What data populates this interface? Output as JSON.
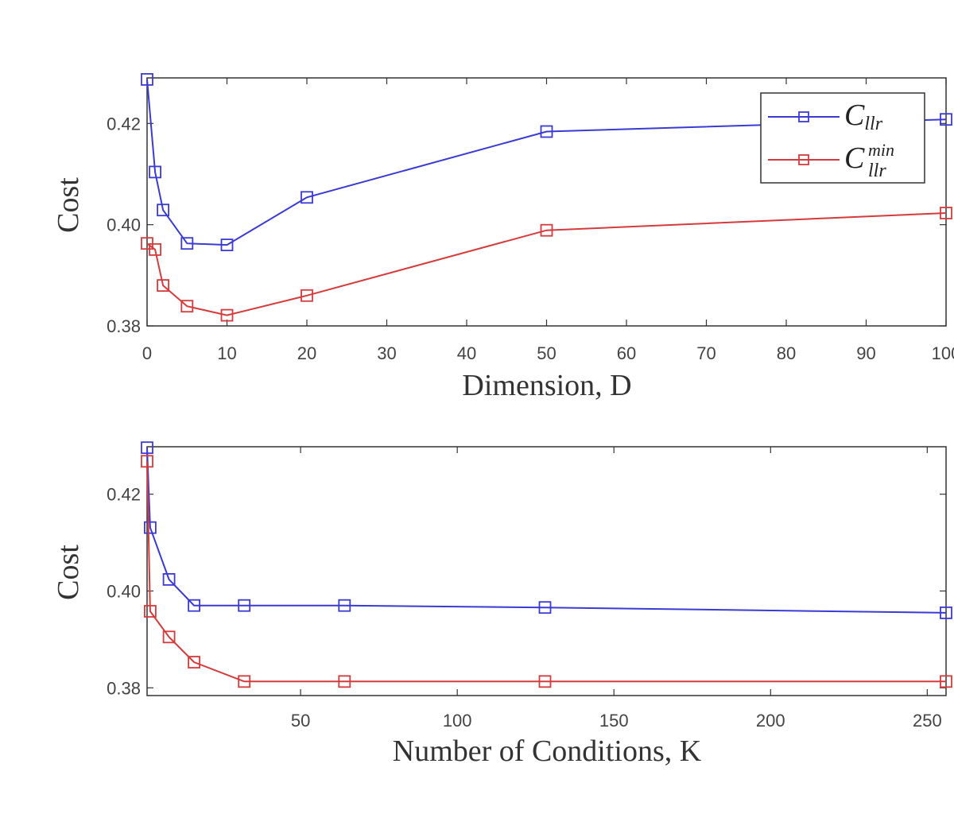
{
  "chart_data": [
    {
      "type": "line",
      "title": "",
      "xlabel": "Dimension, D",
      "ylabel": "Cost",
      "xlim": [
        0,
        100
      ],
      "ylim": [
        0.38,
        0.429
      ],
      "xticks": [
        "0",
        "10",
        "20",
        "30",
        "40",
        "50",
        "60",
        "70",
        "80",
        "90",
        "100"
      ],
      "yticks": [
        "0.38",
        "0.40",
        "0.42"
      ],
      "x": [
        0,
        1,
        2,
        5,
        10,
        20,
        50,
        100
      ],
      "series": [
        {
          "name": "C_llr",
          "color": "#3a3ad6",
          "values": [
            0.4287,
            0.4104,
            0.4029,
            0.3963,
            0.396,
            0.4054,
            0.4184,
            0.4208
          ]
        },
        {
          "name": "C_llr^min",
          "color": "#d63a3a",
          "values": [
            0.3963,
            0.3951,
            0.388,
            0.3839,
            0.3821,
            0.386,
            0.3989,
            0.4023
          ]
        }
      ],
      "legend": {
        "position": "top-right",
        "entries": [
          {
            "main": "C",
            "sub": "llr",
            "sup": ""
          },
          {
            "main": "C",
            "sub": "llr",
            "sup": "min"
          }
        ]
      },
      "grid": false
    },
    {
      "type": "line",
      "title": "",
      "xlabel": "Number of Conditions, K",
      "ylabel": "Cost",
      "xlim": [
        1,
        256
      ],
      "ylim": [
        0.3784,
        0.4298
      ],
      "xticks": [
        "50",
        "100",
        "150",
        "200",
        "250"
      ],
      "yticks": [
        "0.38",
        "0.40",
        "0.42"
      ],
      "x": [
        1,
        2,
        8,
        16,
        32,
        64,
        128,
        256
      ],
      "series": [
        {
          "name": "C_llr",
          "color": "#3a3ad6",
          "values": [
            0.4296,
            0.4131,
            0.4024,
            0.397,
            0.397,
            0.397,
            0.3966,
            0.3955
          ]
        },
        {
          "name": "C_llr^min",
          "color": "#d63a3a",
          "values": [
            0.4268,
            0.3958,
            0.3905,
            0.3853,
            0.3813,
            0.3813,
            0.3813,
            0.3813
          ]
        }
      ],
      "grid": false
    }
  ]
}
